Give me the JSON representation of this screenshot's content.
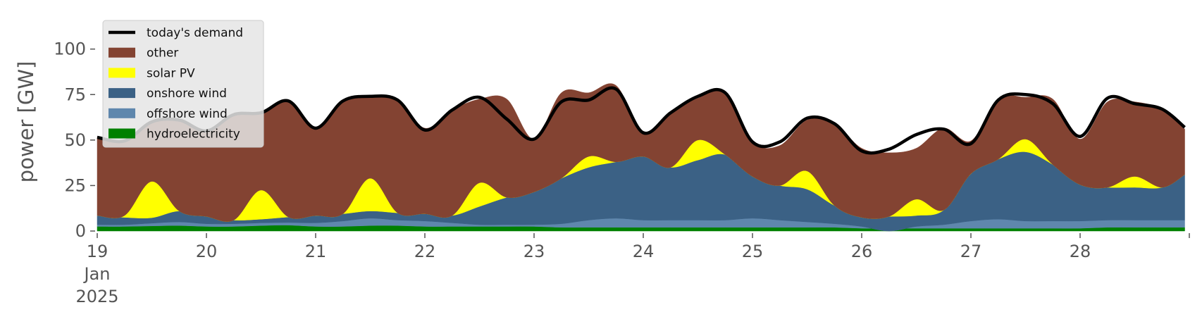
{
  "chart_data": {
    "type": "area",
    "title": "",
    "ylabel": "power [GW]",
    "xlabel": "",
    "ylim": [
      0,
      120
    ],
    "yticks": [
      0,
      25,
      50,
      75,
      100
    ],
    "xlim": [
      "2025-01-19",
      "2025-01-29"
    ],
    "x_tick_labels": [
      {
        "date": "2025-01-19",
        "lines": [
          "19",
          "Jan",
          "2025"
        ]
      },
      {
        "date": "2025-01-20",
        "lines": [
          "20"
        ]
      },
      {
        "date": "2025-01-21",
        "lines": [
          "21"
        ]
      },
      {
        "date": "2025-01-22",
        "lines": [
          "22"
        ]
      },
      {
        "date": "2025-01-23",
        "lines": [
          "23"
        ]
      },
      {
        "date": "2025-01-24",
        "lines": [
          "24"
        ]
      },
      {
        "date": "2025-01-25",
        "lines": [
          "25"
        ]
      },
      {
        "date": "2025-01-26",
        "lines": [
          "26"
        ]
      },
      {
        "date": "2025-01-27",
        "lines": [
          "27"
        ]
      },
      {
        "date": "2025-01-28",
        "lines": [
          "28"
        ]
      }
    ],
    "grid": false,
    "legend_position": "top-left",
    "x": [
      "2025-01-19 00:00",
      "2025-01-19 06:00",
      "2025-01-19 12:00",
      "2025-01-19 18:00",
      "2025-01-20 00:00",
      "2025-01-20 06:00",
      "2025-01-20 12:00",
      "2025-01-20 18:00",
      "2025-01-21 00:00",
      "2025-01-21 06:00",
      "2025-01-21 12:00",
      "2025-01-21 18:00",
      "2025-01-22 00:00",
      "2025-01-22 06:00",
      "2025-01-22 12:00",
      "2025-01-22 18:00",
      "2025-01-23 00:00",
      "2025-01-23 06:00",
      "2025-01-23 12:00",
      "2025-01-23 18:00",
      "2025-01-24 00:00",
      "2025-01-24 06:00",
      "2025-01-24 12:00",
      "2025-01-24 18:00",
      "2025-01-25 00:00",
      "2025-01-25 06:00",
      "2025-01-25 12:00",
      "2025-01-25 18:00",
      "2025-01-26 00:00",
      "2025-01-26 06:00",
      "2025-01-26 12:00",
      "2025-01-26 18:00",
      "2025-01-27 00:00",
      "2025-01-27 06:00",
      "2025-01-27 12:00",
      "2025-01-27 18:00",
      "2025-01-28 00:00",
      "2025-01-28 06:00",
      "2025-01-28 12:00",
      "2025-01-28 18:00",
      "2025-01-28 23:00"
    ],
    "series": [
      {
        "name": "hydroelectricity",
        "color": "#008000",
        "values": [
          2.5,
          2.5,
          2.8,
          3,
          2.5,
          2.5,
          3,
          3.2,
          2.5,
          2.5,
          3,
          3,
          2.5,
          2.5,
          2.5,
          2.5,
          2.5,
          2,
          2,
          2,
          2,
          2,
          2,
          2,
          2,
          2,
          2,
          2,
          1.5,
          1.5,
          1.5,
          1.5,
          1.5,
          1.5,
          1.5,
          1.5,
          1.5,
          2,
          2,
          2,
          2
        ]
      },
      {
        "name": "offshore wind",
        "color": "#5f87ad",
        "values": [
          1,
          1,
          1.5,
          2,
          1.5,
          1.5,
          1.5,
          1.5,
          2,
          3,
          4,
          3,
          3,
          2,
          1,
          1,
          1,
          2,
          4,
          5,
          4,
          4,
          4,
          4,
          5,
          4,
          3,
          2,
          1,
          -1.5,
          1,
          2,
          4,
          5,
          4,
          4,
          4,
          4,
          4,
          4,
          4
        ]
      },
      {
        "name": "onshore wind",
        "color": "#3b6185",
        "values": [
          5,
          4,
          3,
          6,
          4,
          2,
          2,
          3,
          4,
          4,
          4,
          4,
          4,
          4,
          10,
          15,
          18,
          25,
          29,
          31,
          35,
          29,
          33,
          36,
          23,
          19,
          18,
          10,
          5,
          8,
          6,
          8,
          26,
          33,
          38,
          31,
          20,
          18,
          18,
          18,
          25
        ]
      },
      {
        "name": "solar PV",
        "color": "#ffff00",
        "values": [
          0,
          1,
          20,
          0,
          0,
          0,
          16,
          0,
          0,
          0,
          18,
          0,
          0,
          0,
          13,
          0,
          0,
          0,
          6,
          0,
          0,
          0,
          11,
          0,
          0,
          0,
          10,
          0,
          0,
          0,
          9,
          0,
          0,
          0,
          7,
          0,
          0,
          0,
          6,
          0,
          0
        ]
      },
      {
        "name": "other",
        "color": "#834332",
        "values": [
          43,
          41,
          33,
          50,
          47,
          58,
          42,
          63,
          48,
          62,
          45,
          62,
          47,
          58,
          46,
          54,
          29,
          47,
          35,
          42,
          13,
          30,
          23,
          34,
          19,
          22,
          28,
          45,
          38,
          35,
          28,
          45,
          18,
          33,
          23,
          36,
          25,
          47,
          41,
          43,
          25
        ]
      }
    ],
    "demand": {
      "name": "today's demand",
      "color": "#000000",
      "values": [
        51.5,
        49.5,
        60,
        61,
        55,
        64,
        65,
        71.5,
        56.5,
        71.5,
        74,
        72,
        55.5,
        66.5,
        73.5,
        61.5,
        50.5,
        71,
        72,
        78,
        54,
        65,
        74,
        76,
        49,
        49,
        62,
        59,
        44,
        45,
        53,
        56,
        48,
        72,
        75,
        70,
        52,
        73,
        70,
        67,
        57
      ]
    }
  }
}
